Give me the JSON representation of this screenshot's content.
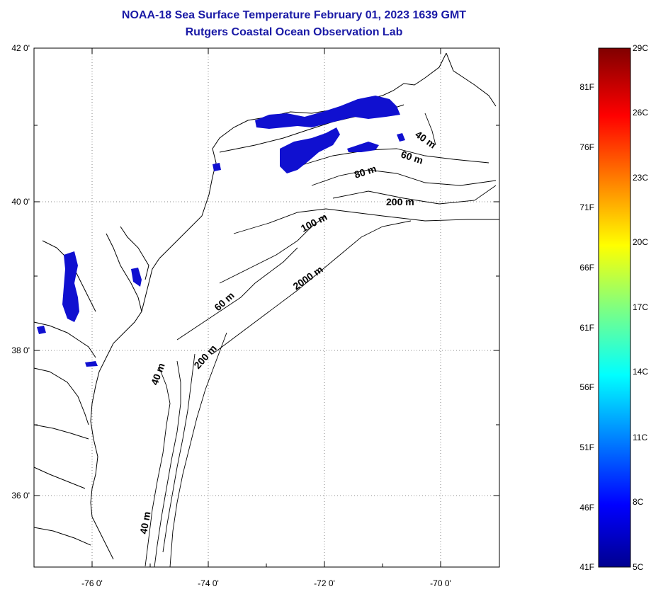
{
  "title_line1": "NOAA-18 Sea Surface Temperature February 01, 2023 1639 GMT",
  "title_line2": "Rutgers Coastal Ocean Observation Lab",
  "map": {
    "lon_range": [
      -77.0,
      -69.0
    ],
    "lat_range": [
      35.0,
      42.0
    ],
    "lat_labels": [
      "42 0'",
      "40 0'",
      "38 0'",
      "36 0'"
    ],
    "lon_labels": [
      "-76 0'",
      "-74 0'",
      "-72 0'",
      "-70 0'"
    ],
    "grid": "dotted",
    "contour_labels": [
      "40 m",
      "60 m",
      "80 m",
      "200 m",
      "100 m",
      "2000 m",
      "60 m",
      "200 m",
      "40 m",
      "40 m"
    ]
  },
  "colorbar": {
    "fahrenheit_labels": [
      "81F",
      "76F",
      "71F",
      "66F",
      "61F",
      "56F",
      "51F",
      "46F",
      "41F"
    ],
    "celsius_labels": [
      "29C",
      "26C",
      "23C",
      "20C",
      "17C",
      "14C",
      "11C",
      "8C",
      "5C"
    ],
    "range_c": [
      5,
      29
    ],
    "colors": [
      "#00008f",
      "#0000ff",
      "#0080ff",
      "#00ffff",
      "#80ff80",
      "#ffff00",
      "#ff8000",
      "#ff0000",
      "#800000"
    ]
  },
  "sst_color": "#1010d0"
}
